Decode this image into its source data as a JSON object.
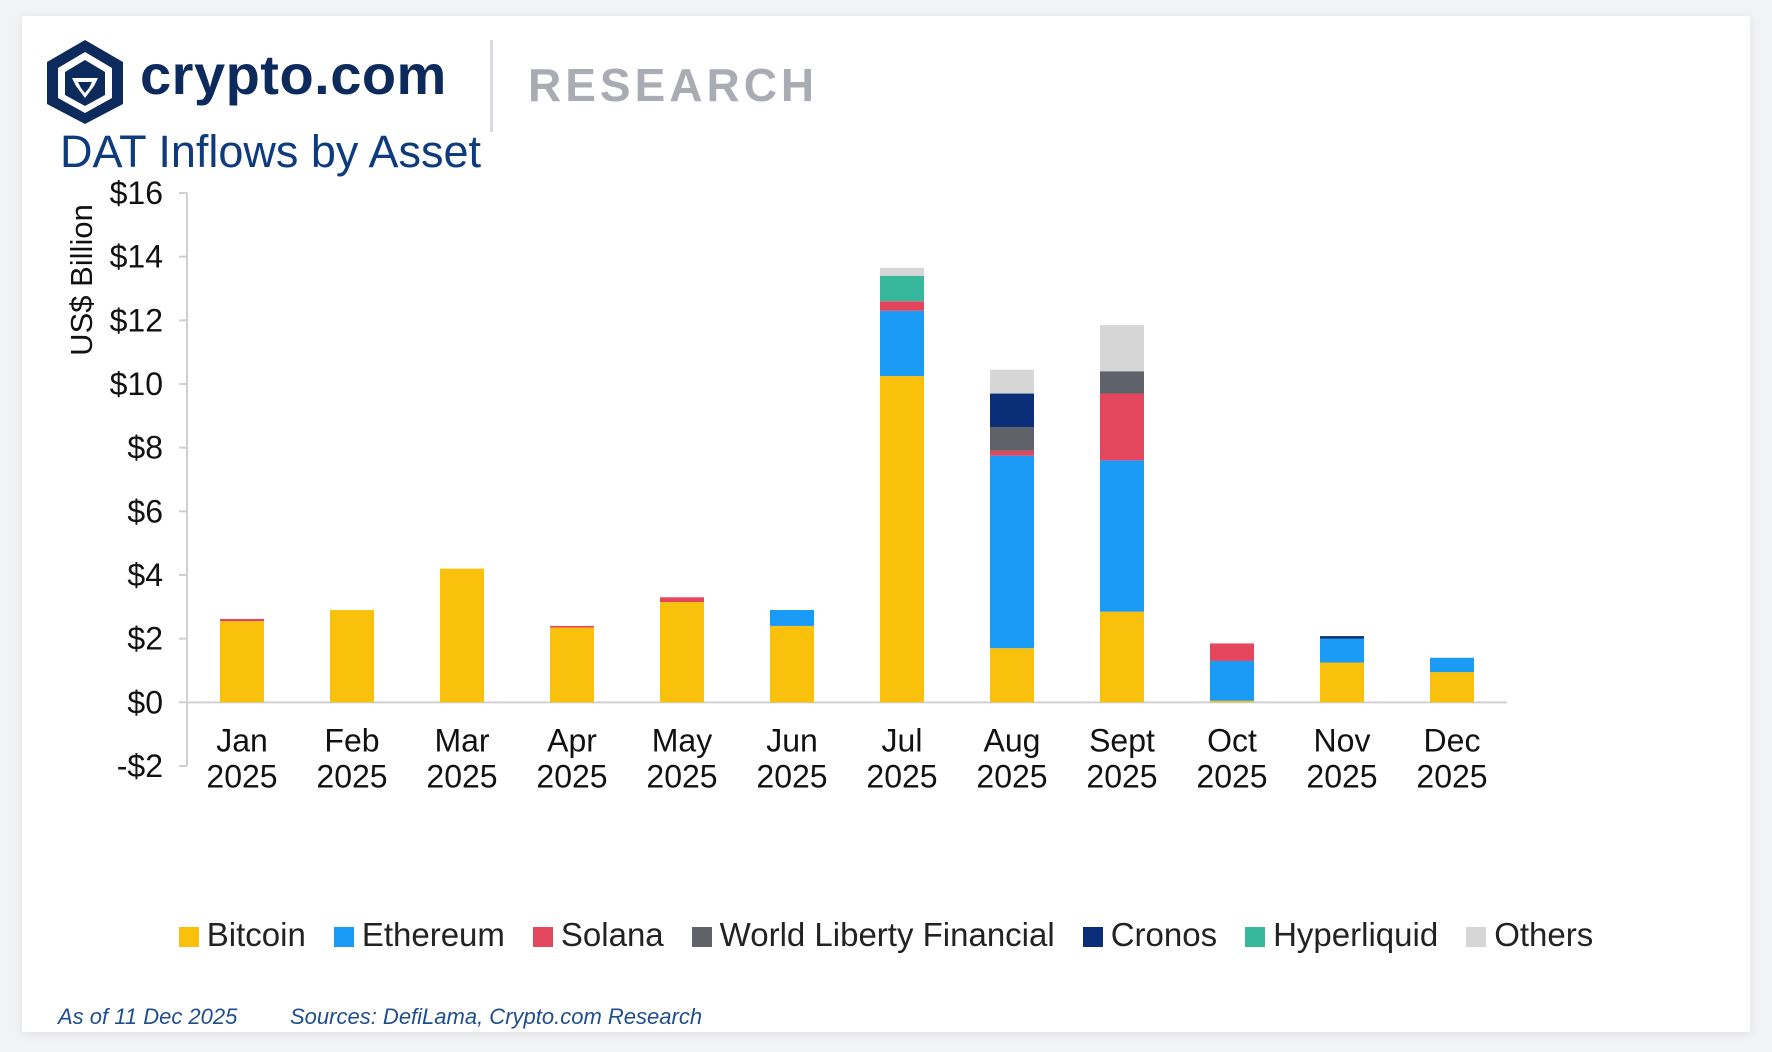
{
  "brand": {
    "name": "crypto.com",
    "section": "RESEARCH"
  },
  "colors": {
    "brand": "#0d2a5c",
    "Bitcoin": "#f9c00c",
    "Ethereum": "#1a9bf5",
    "Solana": "#e4475d",
    "World Liberty Financial": "#5f6369",
    "Cronos": "#0b2e78",
    "Hyperliquid": "#37b79b",
    "Others": "#d6d6d6"
  },
  "chart_data": {
    "type": "bar",
    "stacked": true,
    "title": "DAT Inflows by Asset",
    "ylabel": "US$ Billion",
    "xlabel": "",
    "ylim": [
      -2,
      16
    ],
    "yticks": [
      -2,
      0,
      2,
      4,
      6,
      8,
      10,
      12,
      14,
      16
    ],
    "ytick_labels": [
      "-$2",
      "$0",
      "$2",
      "$4",
      "$6",
      "$8",
      "$10",
      "$12",
      "$14",
      "$16"
    ],
    "categories": [
      [
        "Jan",
        "2025"
      ],
      [
        "Feb",
        "2025"
      ],
      [
        "Mar",
        "2025"
      ],
      [
        "Apr",
        "2025"
      ],
      [
        "May",
        "2025"
      ],
      [
        "Jun",
        "2025"
      ],
      [
        "Jul",
        "2025"
      ],
      [
        "Aug",
        "2025"
      ],
      [
        "Sept",
        "2025"
      ],
      [
        "Oct",
        "2025"
      ],
      [
        "Nov",
        "2025"
      ],
      [
        "Dec",
        "2025"
      ]
    ],
    "series": [
      {
        "name": "Bitcoin",
        "values": [
          2.55,
          2.9,
          4.2,
          2.35,
          3.15,
          2.4,
          10.25,
          1.7,
          2.85,
          0.05,
          1.25,
          0.95
        ]
      },
      {
        "name": "Ethereum",
        "values": [
          0,
          0,
          0,
          0,
          0,
          0.5,
          2.05,
          6.05,
          4.75,
          1.25,
          0.75,
          0.45
        ]
      },
      {
        "name": "Solana",
        "values": [
          0.07,
          0,
          0,
          0.05,
          0.15,
          0,
          0.3,
          0.15,
          2.1,
          0.55,
          0,
          0
        ]
      },
      {
        "name": "World Liberty Financial",
        "values": [
          0,
          0,
          0,
          0,
          0,
          0,
          0,
          0.75,
          0.7,
          0,
          0,
          0
        ]
      },
      {
        "name": "Cronos",
        "values": [
          0,
          0,
          0,
          0,
          0,
          0,
          0,
          1.05,
          0,
          0,
          0.08,
          0
        ]
      },
      {
        "name": "Hyperliquid",
        "values": [
          0,
          0,
          0,
          0,
          0,
          0,
          0.8,
          0,
          0,
          0,
          0,
          0
        ]
      },
      {
        "name": "Others",
        "values": [
          0,
          0,
          0,
          0,
          0,
          0,
          0.25,
          0.75,
          1.45,
          0,
          0,
          0
        ]
      }
    ],
    "legend": [
      "Bitcoin",
      "Ethereum",
      "Solana",
      "World Liberty Financial",
      "Cronos",
      "Hyperliquid",
      "Others"
    ],
    "legend_position": "bottom"
  },
  "footer": {
    "as_of": "As of 11 Dec 2025",
    "sources": "Sources: DefiLama, Crypto.com Research"
  }
}
